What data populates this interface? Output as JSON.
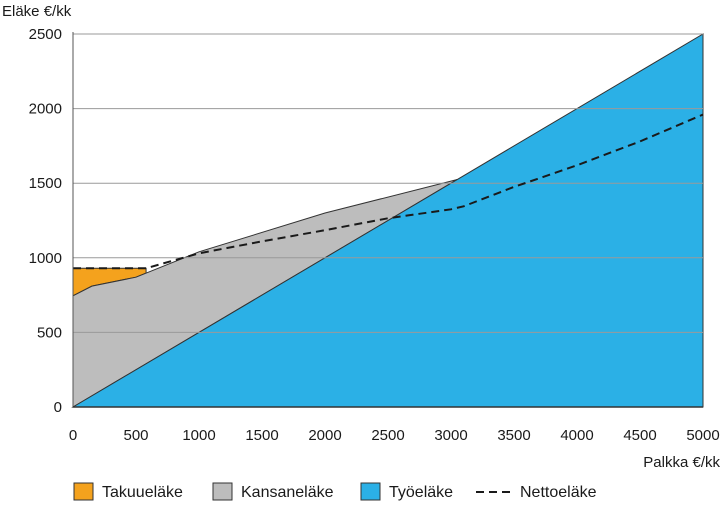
{
  "chart_data": {
    "type": "area",
    "ylabel": "Eläke €/kk",
    "xlabel": "Palkka €/kk",
    "xlim": [
      0,
      5000
    ],
    "ylim": [
      0,
      2500
    ],
    "x_ticks": [
      0,
      500,
      1000,
      1500,
      2000,
      2500,
      3000,
      3500,
      4000,
      4500,
      5000
    ],
    "y_ticks": [
      0,
      500,
      1000,
      1500,
      2000,
      2500
    ],
    "grid": "horizontal",
    "legend_position": "bottom",
    "colors": {
      "takuu": "#f4a21d",
      "kansa": "#bdbdbd",
      "tyo": "#2bb0e6",
      "netto": "#1a1a1a",
      "grid": "#9a9a9a",
      "axis": "#555555"
    },
    "series": [
      {
        "key": "tyo",
        "name": "Työeläke",
        "style": "area",
        "x": [
          0,
          5000
        ],
        "y": [
          0,
          2500
        ]
      },
      {
        "key": "kansa",
        "name": "Kansaneläke",
        "style": "area",
        "x": [
          0,
          150,
          500,
          1000,
          2000,
          3050
        ],
        "y": [
          745,
          810,
          870,
          1040,
          1300,
          1525
        ]
      },
      {
        "key": "takuu",
        "name": "Takuueläke",
        "style": "area",
        "x": [
          0,
          150,
          500,
          580
        ],
        "y": [
          930,
          930,
          930,
          930
        ]
      },
      {
        "key": "netto",
        "name": "Nettoeläke",
        "style": "dashed-line",
        "x": [
          0,
          580,
          1000,
          1500,
          2000,
          2500,
          3000,
          3100,
          3500,
          4000,
          4500,
          5000
        ],
        "y": [
          930,
          930,
          1030,
          1110,
          1185,
          1265,
          1325,
          1345,
          1475,
          1620,
          1780,
          1960
        ]
      }
    ]
  }
}
